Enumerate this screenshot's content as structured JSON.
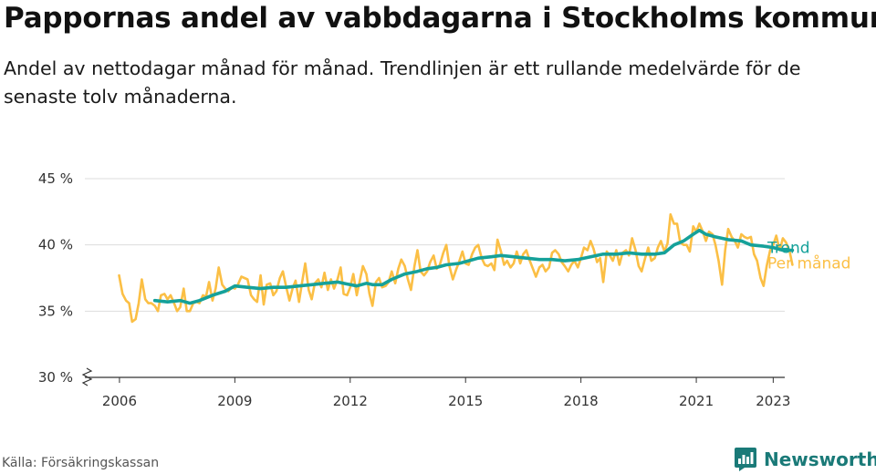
{
  "title": "Pappornas andel av vabbdagarna i Stockholms kommun",
  "subtitle": "Andel av nettodagar månad för månad. Trendlinjen är ett rullande medelvärde för de senaste tolv månaderna.",
  "source": "Källa: Försäkringskassan",
  "brand": {
    "name": "Newsworthy",
    "icon": "newsworthy-bar-chart-icon"
  },
  "colors": {
    "monthly": "#fbbf45",
    "trend": "#15a19a",
    "axis": "#333333",
    "grid": "#dddddd",
    "brand": "#1a7a78"
  },
  "chart_data": {
    "type": "line",
    "ylabel": "",
    "xlabel": "",
    "ylim": [
      30,
      45
    ],
    "y_ticks": [
      30,
      35,
      40,
      45
    ],
    "y_tick_labels": [
      "30 %",
      "35 %",
      "40 %",
      "45 %"
    ],
    "y_axis_break": true,
    "x_ticks": [
      2006,
      2009,
      2012,
      2015,
      2018,
      2021,
      2023
    ],
    "x_tick_labels": [
      "2006",
      "2009",
      "2012",
      "2015",
      "2018",
      "2021",
      "2023"
    ],
    "xlim": [
      2005.1,
      2023.3
    ],
    "grid": "horizontal",
    "legend": "right-end labels",
    "series": [
      {
        "name": "Per månad",
        "key": "monthly",
        "points": [
          [
            2005.99,
            37.7
          ],
          [
            2006.08,
            36.3
          ],
          [
            2006.17,
            35.8
          ],
          [
            2006.25,
            35.6
          ],
          [
            2006.33,
            34.2
          ],
          [
            2006.42,
            34.4
          ],
          [
            2006.5,
            35.6
          ],
          [
            2006.58,
            37.4
          ],
          [
            2006.67,
            35.9
          ],
          [
            2006.75,
            35.6
          ],
          [
            2006.83,
            35.6
          ],
          [
            2006.92,
            35.4
          ],
          [
            2007.0,
            35.0
          ],
          [
            2007.08,
            36.2
          ],
          [
            2007.17,
            36.3
          ],
          [
            2007.25,
            35.9
          ],
          [
            2007.33,
            36.2
          ],
          [
            2007.42,
            35.6
          ],
          [
            2007.5,
            35.0
          ],
          [
            2007.58,
            35.3
          ],
          [
            2007.67,
            36.7
          ],
          [
            2007.75,
            35.0
          ],
          [
            2007.83,
            35.0
          ],
          [
            2007.92,
            35.6
          ],
          [
            2008.0,
            35.7
          ],
          [
            2008.08,
            35.6
          ],
          [
            2008.17,
            36.2
          ],
          [
            2008.25,
            36.1
          ],
          [
            2008.33,
            37.2
          ],
          [
            2008.42,
            35.8
          ],
          [
            2008.5,
            36.7
          ],
          [
            2008.58,
            38.3
          ],
          [
            2008.67,
            37.0
          ],
          [
            2008.75,
            36.7
          ],
          [
            2008.83,
            36.5
          ],
          [
            2008.92,
            36.8
          ],
          [
            2009.0,
            36.7
          ],
          [
            2009.08,
            37.0
          ],
          [
            2009.17,
            37.6
          ],
          [
            2009.25,
            37.5
          ],
          [
            2009.33,
            37.4
          ],
          [
            2009.42,
            36.2
          ],
          [
            2009.5,
            35.9
          ],
          [
            2009.58,
            35.7
          ],
          [
            2009.67,
            37.7
          ],
          [
            2009.75,
            35.5
          ],
          [
            2009.83,
            37.0
          ],
          [
            2009.92,
            37.1
          ],
          [
            2010.0,
            36.2
          ],
          [
            2010.08,
            36.5
          ],
          [
            2010.17,
            37.5
          ],
          [
            2010.25,
            38.0
          ],
          [
            2010.33,
            36.9
          ],
          [
            2010.42,
            35.8
          ],
          [
            2010.5,
            36.7
          ],
          [
            2010.58,
            37.3
          ],
          [
            2010.67,
            35.7
          ],
          [
            2010.75,
            37.2
          ],
          [
            2010.83,
            38.6
          ],
          [
            2010.92,
            36.6
          ],
          [
            2011.0,
            35.9
          ],
          [
            2011.08,
            37.1
          ],
          [
            2011.17,
            37.4
          ],
          [
            2011.25,
            36.8
          ],
          [
            2011.33,
            37.9
          ],
          [
            2011.42,
            36.6
          ],
          [
            2011.5,
            37.4
          ],
          [
            2011.58,
            36.7
          ],
          [
            2011.67,
            37.4
          ],
          [
            2011.75,
            38.3
          ],
          [
            2011.83,
            36.3
          ],
          [
            2011.92,
            36.2
          ],
          [
            2012.0,
            36.8
          ],
          [
            2012.08,
            37.8
          ],
          [
            2012.17,
            36.2
          ],
          [
            2012.25,
            37.3
          ],
          [
            2012.33,
            38.4
          ],
          [
            2012.42,
            37.8
          ],
          [
            2012.5,
            36.3
          ],
          [
            2012.58,
            35.4
          ],
          [
            2012.67,
            37.2
          ],
          [
            2012.75,
            37.5
          ],
          [
            2012.83,
            36.8
          ],
          [
            2012.92,
            36.9
          ],
          [
            2013.0,
            37.2
          ],
          [
            2013.08,
            38.0
          ],
          [
            2013.17,
            37.1
          ],
          [
            2013.25,
            38.2
          ],
          [
            2013.33,
            38.9
          ],
          [
            2013.42,
            38.4
          ],
          [
            2013.5,
            37.4
          ],
          [
            2013.58,
            36.6
          ],
          [
            2013.67,
            38.4
          ],
          [
            2013.75,
            39.6
          ],
          [
            2013.83,
            38.0
          ],
          [
            2013.92,
            37.7
          ],
          [
            2014.0,
            38.0
          ],
          [
            2014.08,
            38.7
          ],
          [
            2014.17,
            39.2
          ],
          [
            2014.25,
            38.2
          ],
          [
            2014.33,
            38.5
          ],
          [
            2014.42,
            39.4
          ],
          [
            2014.5,
            40.0
          ],
          [
            2014.58,
            38.4
          ],
          [
            2014.67,
            37.4
          ],
          [
            2014.75,
            38.1
          ],
          [
            2014.83,
            38.7
          ],
          [
            2014.92,
            39.5
          ],
          [
            2015.0,
            38.6
          ],
          [
            2015.08,
            38.5
          ],
          [
            2015.17,
            39.3
          ],
          [
            2015.25,
            39.8
          ],
          [
            2015.33,
            40.0
          ],
          [
            2015.42,
            39.0
          ],
          [
            2015.5,
            38.5
          ],
          [
            2015.58,
            38.4
          ],
          [
            2015.67,
            38.6
          ],
          [
            2015.75,
            38.1
          ],
          [
            2015.83,
            40.4
          ],
          [
            2015.92,
            39.5
          ],
          [
            2016.0,
            38.5
          ],
          [
            2016.08,
            38.8
          ],
          [
            2016.17,
            38.3
          ],
          [
            2016.25,
            38.6
          ],
          [
            2016.33,
            39.5
          ],
          [
            2016.42,
            38.6
          ],
          [
            2016.5,
            39.3
          ],
          [
            2016.58,
            39.6
          ],
          [
            2016.67,
            38.8
          ],
          [
            2016.75,
            38.2
          ],
          [
            2016.83,
            37.6
          ],
          [
            2016.92,
            38.3
          ],
          [
            2017.0,
            38.5
          ],
          [
            2017.08,
            38.0
          ],
          [
            2017.17,
            38.3
          ],
          [
            2017.25,
            39.4
          ],
          [
            2017.33,
            39.6
          ],
          [
            2017.42,
            39.3
          ],
          [
            2017.5,
            38.7
          ],
          [
            2017.58,
            38.4
          ],
          [
            2017.67,
            38.0
          ],
          [
            2017.75,
            38.5
          ],
          [
            2017.83,
            38.8
          ],
          [
            2017.92,
            38.3
          ],
          [
            2018.0,
            39.0
          ],
          [
            2018.08,
            39.8
          ],
          [
            2018.17,
            39.6
          ],
          [
            2018.25,
            40.3
          ],
          [
            2018.33,
            39.7
          ],
          [
            2018.42,
            38.7
          ],
          [
            2018.5,
            39.0
          ],
          [
            2018.58,
            37.2
          ],
          [
            2018.67,
            39.5
          ],
          [
            2018.75,
            39.2
          ],
          [
            2018.83,
            38.8
          ],
          [
            2018.92,
            39.6
          ],
          [
            2019.0,
            38.5
          ],
          [
            2019.08,
            39.4
          ],
          [
            2019.17,
            39.6
          ],
          [
            2019.25,
            39.2
          ],
          [
            2019.33,
            40.5
          ],
          [
            2019.42,
            39.6
          ],
          [
            2019.5,
            38.4
          ],
          [
            2019.58,
            38.0
          ],
          [
            2019.67,
            39.0
          ],
          [
            2019.75,
            39.8
          ],
          [
            2019.83,
            38.8
          ],
          [
            2019.92,
            39.0
          ],
          [
            2020.0,
            39.8
          ],
          [
            2020.08,
            40.3
          ],
          [
            2020.17,
            39.5
          ],
          [
            2020.25,
            40.1
          ],
          [
            2020.33,
            42.3
          ],
          [
            2020.42,
            41.6
          ],
          [
            2020.5,
            41.6
          ],
          [
            2020.58,
            40.2
          ],
          [
            2020.67,
            40.0
          ],
          [
            2020.75,
            40.0
          ],
          [
            2020.83,
            39.5
          ],
          [
            2020.92,
            41.4
          ],
          [
            2021.0,
            41.0
          ],
          [
            2021.08,
            41.6
          ],
          [
            2021.17,
            41.0
          ],
          [
            2021.25,
            40.3
          ],
          [
            2021.33,
            41.0
          ],
          [
            2021.42,
            40.8
          ],
          [
            2021.5,
            40.0
          ],
          [
            2021.58,
            38.8
          ],
          [
            2021.67,
            37.0
          ],
          [
            2021.75,
            39.6
          ],
          [
            2021.83,
            41.2
          ],
          [
            2021.92,
            40.6
          ],
          [
            2022.0,
            40.3
          ],
          [
            2022.08,
            39.8
          ],
          [
            2022.17,
            40.8
          ],
          [
            2022.25,
            40.6
          ],
          [
            2022.33,
            40.5
          ],
          [
            2022.42,
            40.6
          ],
          [
            2022.5,
            39.3
          ],
          [
            2022.58,
            38.8
          ],
          [
            2022.67,
            37.5
          ],
          [
            2022.75,
            36.9
          ],
          [
            2022.83,
            38.4
          ],
          [
            2022.92,
            39.6
          ],
          [
            2023.0,
            40.0
          ],
          [
            2023.08,
            40.7
          ],
          [
            2023.17,
            39.6
          ],
          [
            2023.25,
            40.5
          ],
          [
            2023.33,
            40.2
          ],
          [
            2023.42,
            39.6
          ],
          [
            2023.5,
            38.5
          ]
        ]
      },
      {
        "name": "Trend",
        "key": "trend",
        "points": [
          [
            2006.92,
            35.8
          ],
          [
            2007.25,
            35.7
          ],
          [
            2007.58,
            35.8
          ],
          [
            2007.83,
            35.6
          ],
          [
            2008.08,
            35.8
          ],
          [
            2008.42,
            36.2
          ],
          [
            2008.75,
            36.5
          ],
          [
            2009.0,
            36.9
          ],
          [
            2009.33,
            36.8
          ],
          [
            2009.67,
            36.7
          ],
          [
            2010.0,
            36.8
          ],
          [
            2010.33,
            36.8
          ],
          [
            2010.67,
            36.9
          ],
          [
            2011.0,
            37.0
          ],
          [
            2011.33,
            37.1
          ],
          [
            2011.67,
            37.2
          ],
          [
            2012.0,
            37.0
          ],
          [
            2012.17,
            36.9
          ],
          [
            2012.42,
            37.1
          ],
          [
            2012.58,
            37.0
          ],
          [
            2012.83,
            37.0
          ],
          [
            2013.08,
            37.4
          ],
          [
            2013.42,
            37.8
          ],
          [
            2013.75,
            38.0
          ],
          [
            2014.0,
            38.2
          ],
          [
            2014.25,
            38.3
          ],
          [
            2014.5,
            38.5
          ],
          [
            2014.83,
            38.6
          ],
          [
            2015.08,
            38.8
          ],
          [
            2015.33,
            39.0
          ],
          [
            2015.67,
            39.1
          ],
          [
            2015.92,
            39.2
          ],
          [
            2016.25,
            39.1
          ],
          [
            2016.58,
            39.0
          ],
          [
            2016.92,
            38.9
          ],
          [
            2017.25,
            38.9
          ],
          [
            2017.58,
            38.8
          ],
          [
            2017.92,
            38.9
          ],
          [
            2018.25,
            39.1
          ],
          [
            2018.58,
            39.3
          ],
          [
            2018.92,
            39.3
          ],
          [
            2019.25,
            39.4
          ],
          [
            2019.58,
            39.3
          ],
          [
            2019.92,
            39.3
          ],
          [
            2020.17,
            39.4
          ],
          [
            2020.42,
            40.0
          ],
          [
            2020.67,
            40.3
          ],
          [
            2020.92,
            40.8
          ],
          [
            2021.08,
            41.1
          ],
          [
            2021.25,
            40.8
          ],
          [
            2021.5,
            40.6
          ],
          [
            2021.83,
            40.4
          ],
          [
            2022.17,
            40.3
          ],
          [
            2022.42,
            40.0
          ],
          [
            2022.75,
            39.9
          ],
          [
            2023.0,
            39.8
          ],
          [
            2023.25,
            39.6
          ],
          [
            2023.5,
            39.6
          ]
        ]
      }
    ]
  }
}
